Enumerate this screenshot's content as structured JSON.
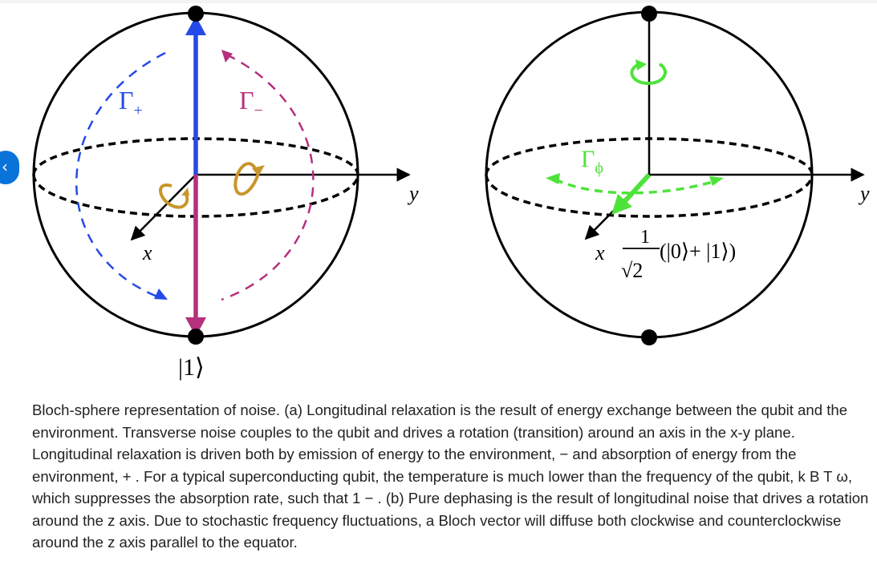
{
  "figure": {
    "panel_a": {
      "rate_up": "Γ",
      "rate_up_sub": "+",
      "rate_down": "Γ",
      "rate_down_sub": "−",
      "axis_x": "x",
      "axis_y": "y",
      "state_bottom": "|1⟩"
    },
    "panel_b": {
      "rate_phi": "Γ",
      "rate_phi_sub": "ϕ",
      "axis_x": "x",
      "axis_y": "y",
      "frac_num": "1",
      "frac_den": "√2",
      "superposition": "(|0⟩+ |1⟩)"
    },
    "colors": {
      "blue": "#2549e8",
      "magenta": "#b5307d",
      "gold": "#c8962a",
      "green": "#4ee33a",
      "black": "#000000"
    }
  },
  "navigation": {
    "prev_icon": "‹"
  },
  "caption": {
    "text": "Bloch-sphere representation of noise. (a) Longitudinal relaxation is the result of energy exchange between the qubit and the environment. Transverse noise couples to the qubit and drives a rotation (transition) around an axis in the x-y plane. Longitudinal relaxation is driven both by emission of energy to the environment, − and absorption of energy from the environment, + . For a typical superconducting qubit, the temperature is much lower than the frequency of the qubit, k B T ω, which suppresses the absorption rate, such that 1 − . (b) Pure dephasing is the result of longitudinal noise that drives a rotation around the z axis. Due to stochastic frequency fluctuations, a Bloch vector will diffuse both clockwise and counterclockwise around the z axis parallel to the equator."
  }
}
